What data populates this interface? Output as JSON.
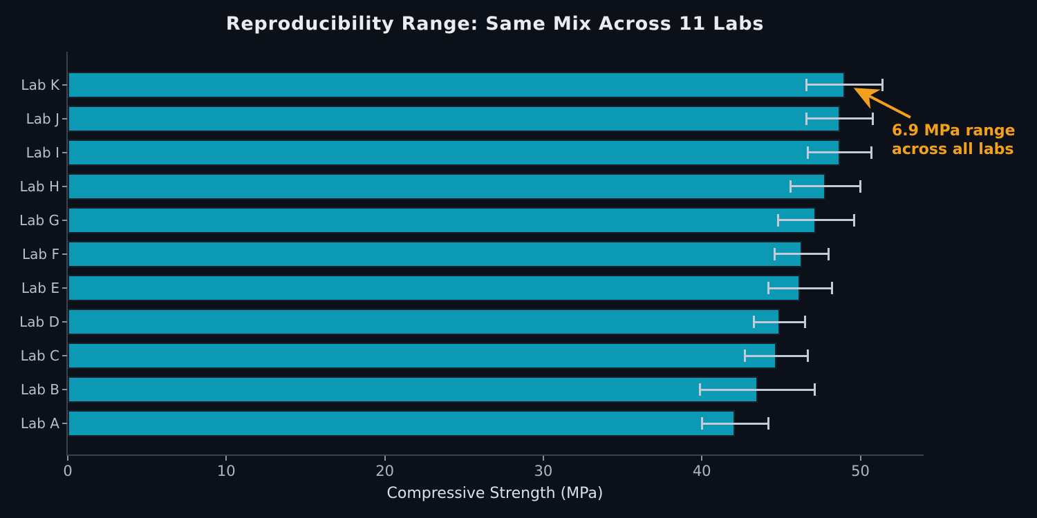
{
  "chart_data": {
    "type": "bar",
    "orientation": "horizontal",
    "title": "Reproducibility Range: Same Mix Across 11 Labs",
    "xlabel": "Compressive Strength (MPa)",
    "ylabel": "",
    "xlim": [
      0,
      54
    ],
    "xticks": [
      0,
      10,
      20,
      30,
      40,
      50
    ],
    "grid": false,
    "legend": "none",
    "bars_top_to_bottom": [
      {
        "label": "Lab K",
        "value": 49.0,
        "error": 2.4
      },
      {
        "label": "Lab J",
        "value": 48.7,
        "error": 2.1
      },
      {
        "label": "Lab I",
        "value": 48.7,
        "error": 2.0
      },
      {
        "label": "Lab H",
        "value": 47.8,
        "error": 2.2
      },
      {
        "label": "Lab G",
        "value": 47.2,
        "error": 2.4
      },
      {
        "label": "Lab F",
        "value": 46.3,
        "error": 1.7
      },
      {
        "label": "Lab E",
        "value": 46.2,
        "error": 2.0
      },
      {
        "label": "Lab D",
        "value": 44.9,
        "error": 1.6
      },
      {
        "label": "Lab C",
        "value": 44.7,
        "error": 2.0
      },
      {
        "label": "Lab B",
        "value": 43.5,
        "error": 3.6
      },
      {
        "label": "Lab A",
        "value": 42.1,
        "error": 2.1
      }
    ],
    "annotation": {
      "line1": "6.9 MPa range",
      "line2": "across all labs",
      "arrow_points_to": "end of Lab K bar"
    },
    "colors": {
      "background": "#0c1018",
      "bar_fill": "#0c99b4",
      "bar_edge": "#17222f",
      "error_bar": "#c5cad7",
      "annotation": "#f2a01d",
      "title_text": "#e9ecf2",
      "axis_label_text": "#dae0e9",
      "tick_label_text": "#aeb6c3",
      "spine": "#39424f"
    }
  }
}
